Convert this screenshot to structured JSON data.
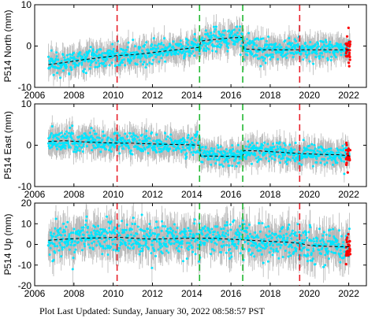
{
  "footer": "Plot Last Updated:   Sunday, January 30, 2022 08:58:57 PST",
  "colors": {
    "data": "#00e5ff",
    "error_bars": "#b8b8b8",
    "trend": "#000000",
    "recent": "#ff0000",
    "event_red": "#e8202a",
    "event_green": "#22b832"
  },
  "chart_data": [
    {
      "type": "scatter",
      "ylabel": "P514 North (mm)",
      "xlim": [
        2006,
        2022.9
      ],
      "ylim": [
        -10,
        10
      ],
      "xticks": [
        "2006",
        "2008",
        "2010",
        "2012",
        "2014",
        "2016",
        "2018",
        "2020",
        "2022"
      ],
      "yticks": [
        "-10",
        "0",
        "10"
      ],
      "event_lines": [
        {
          "x": 2010.2,
          "color": "red"
        },
        {
          "x": 2014.4,
          "color": "green"
        },
        {
          "x": 2016.6,
          "color": "green"
        },
        {
          "x": 2019.5,
          "color": "red"
        }
      ],
      "trend": {
        "x": [
          2006.7,
          2007.5,
          2008.5,
          2009.5,
          2010.2,
          2011,
          2012,
          2013,
          2014,
          2014.4,
          2014.45,
          2015,
          2016,
          2016.6,
          2016.65,
          2017.5,
          2018.5,
          2019.5,
          2020.5,
          2021.5,
          2022.1
        ],
        "y": [
          -4.5,
          -4,
          -3.3,
          -2.7,
          -2.3,
          -2.1,
          -1.6,
          -1.0,
          -0.5,
          -0.3,
          1.2,
          1.5,
          2.0,
          2.1,
          -0.7,
          -0.9,
          -0.9,
          -0.9,
          -0.9,
          -0.9,
          -0.9
        ]
      },
      "scatter": {
        "x_range": [
          2006.7,
          2022.05
        ],
        "spread": 1.3,
        "error_bar": 2.5
      },
      "recent": {
        "x_range": [
          2021.85,
          2022.08
        ],
        "spread": 2.0
      }
    },
    {
      "type": "scatter",
      "ylabel": "P514 East (mm)",
      "xlim": [
        2006,
        2022.9
      ],
      "ylim": [
        -10,
        10
      ],
      "xticks": [
        "2006",
        "2008",
        "2010",
        "2012",
        "2014",
        "2016",
        "2018",
        "2020",
        "2022"
      ],
      "yticks": [
        "-10",
        "0",
        "10"
      ],
      "event_lines": [
        {
          "x": 2010.2,
          "color": "red"
        },
        {
          "x": 2014.4,
          "color": "green"
        },
        {
          "x": 2016.6,
          "color": "green"
        },
        {
          "x": 2019.5,
          "color": "red"
        }
      ],
      "trend": {
        "x": [
          2006.7,
          2007.5,
          2008.5,
          2009.5,
          2010.2,
          2011,
          2012,
          2013,
          2014,
          2014.4,
          2014.45,
          2015,
          2016,
          2016.6,
          2016.65,
          2017.5,
          2018.5,
          2019.5,
          2020.5,
          2021.5,
          2022.1
        ],
        "y": [
          0.9,
          1.1,
          0.8,
          0.6,
          0.5,
          0.5,
          0.3,
          0.2,
          0.1,
          0.0,
          -2.6,
          -2.6,
          -2.7,
          -2.8,
          -1.3,
          -1.4,
          -1.7,
          -2.0,
          -2.2,
          -2.3,
          -2.6
        ]
      },
      "scatter": {
        "x_range": [
          2006.7,
          2022.05
        ],
        "spread": 1.3,
        "error_bar": 2.5
      },
      "recent": {
        "x_range": [
          2021.85,
          2022.08
        ],
        "spread": 1.5
      }
    },
    {
      "type": "scatter",
      "ylabel": "P514 Up (mm)",
      "xlim": [
        2006,
        2022.9
      ],
      "ylim": [
        -20,
        20
      ],
      "xticks": [
        "2006",
        "2008",
        "2010",
        "2012",
        "2014",
        "2016",
        "2018",
        "2020",
        "2022"
      ],
      "yticks": [
        "-20",
        "-10",
        "0",
        "10",
        "20"
      ],
      "event_lines": [
        {
          "x": 2010.2,
          "color": "red"
        },
        {
          "x": 2014.4,
          "color": "green"
        },
        {
          "x": 2016.6,
          "color": "green"
        },
        {
          "x": 2019.5,
          "color": "red"
        }
      ],
      "trend": {
        "x": [
          2006.7,
          2007.5,
          2008.5,
          2009.5,
          2010.2,
          2011,
          2012,
          2013,
          2014,
          2015,
          2016,
          2017,
          2018,
          2019,
          2019.5,
          2020,
          2021,
          2022.1
        ],
        "y": [
          2.0,
          2.5,
          3.0,
          3.2,
          3.5,
          3.0,
          2.5,
          2.8,
          3.0,
          3.0,
          2.5,
          2.0,
          1.5,
          1.0,
          0.5,
          -0.5,
          -1.0,
          -1.2
        ]
      },
      "scatter": {
        "x_range": [
          2006.7,
          2022.05
        ],
        "spread": 4.0,
        "error_bar": 7.0
      },
      "recent": {
        "x_range": [
          2021.85,
          2022.08
        ],
        "spread": 4.0
      }
    }
  ]
}
